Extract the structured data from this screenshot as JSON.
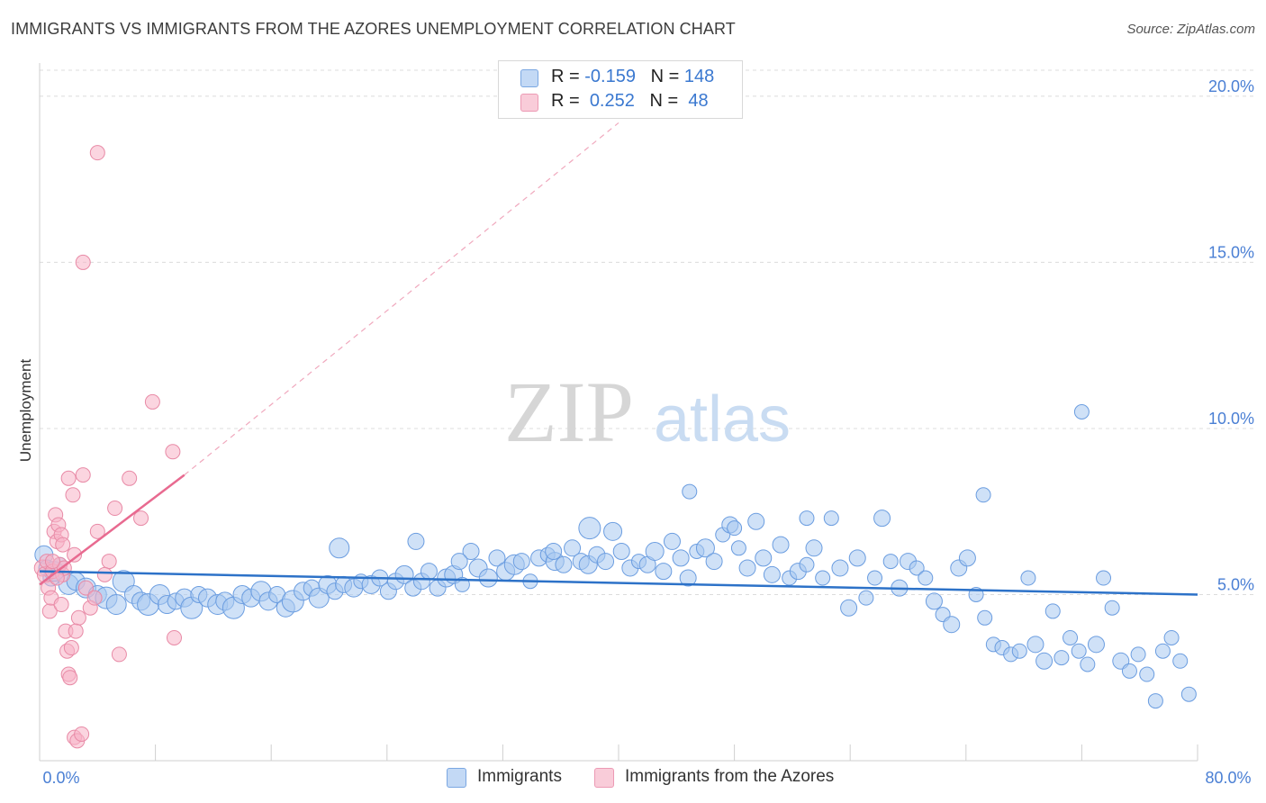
{
  "title": "IMMIGRANTS VS IMMIGRANTS FROM THE AZORES UNEMPLOYMENT CORRELATION CHART",
  "source": "Source: ZipAtlas.com",
  "watermark": {
    "zip": "ZIP",
    "atlas": "atlas"
  },
  "legend": {
    "rows": [
      {
        "r_label": "R =",
        "r_value": "-0.159",
        "n_label": "N =",
        "n_value": "148",
        "color": "#9ec4ef"
      },
      {
        "r_label": "R =",
        "r_value": "0.252",
        "n_label": "N =",
        "n_value": "48",
        "color": "#f7b3c6"
      }
    ]
  },
  "bottom_legend": [
    {
      "label": "Immigrants",
      "color": "#9ec4ef"
    },
    {
      "label": "Immigrants from the Azores",
      "color": "#f7b3c6"
    }
  ],
  "chart_data": {
    "type": "scatter",
    "title": "IMMIGRANTS VS IMMIGRANTS FROM THE AZORES UNEMPLOYMENT CORRELATION CHART",
    "xlabel": "",
    "ylabel": "Unemployment",
    "xlim": [
      0,
      80
    ],
    "ylim": [
      0,
      21
    ],
    "x_tick_labels": [
      "0.0%",
      "80.0%"
    ],
    "y_ticks": [
      5,
      10,
      15,
      20
    ],
    "y_tick_labels": [
      "5.0%",
      "10.0%",
      "15.0%",
      "20.0%"
    ],
    "grid": true,
    "legend_position": "top-center",
    "series": [
      {
        "name": "Immigrants",
        "color": "#6b9de0",
        "fill": "#a8c8f0",
        "trend": {
          "x": [
            0,
            80
          ],
          "y": [
            5.7,
            5.0
          ],
          "color": "#2d72c8"
        },
        "points": [
          [
            0.3,
            6.2,
            10
          ],
          [
            0.5,
            5.8,
            9
          ],
          [
            0.8,
            5.5,
            9
          ],
          [
            1.0,
            5.7,
            11
          ],
          [
            1.4,
            5.9,
            8
          ],
          [
            2.0,
            5.3,
            11
          ],
          [
            2.5,
            5.4,
            10
          ],
          [
            3.2,
            5.2,
            11
          ],
          [
            4.0,
            5.0,
            10
          ],
          [
            4.6,
            4.9,
            12
          ],
          [
            5.3,
            4.7,
            11
          ],
          [
            5.8,
            5.4,
            12
          ],
          [
            6.5,
            5.0,
            10
          ],
          [
            7.0,
            4.8,
            10
          ],
          [
            7.5,
            4.7,
            12
          ],
          [
            8.3,
            5.0,
            11
          ],
          [
            8.8,
            4.7,
            10
          ],
          [
            9.4,
            4.8,
            9
          ],
          [
            10.0,
            4.9,
            10
          ],
          [
            10.5,
            4.6,
            12
          ],
          [
            11.0,
            5.0,
            9
          ],
          [
            11.6,
            4.9,
            10
          ],
          [
            12.3,
            4.7,
            11
          ],
          [
            12.8,
            4.8,
            10
          ],
          [
            13.4,
            4.6,
            12
          ],
          [
            14.0,
            5.0,
            10
          ],
          [
            14.6,
            4.9,
            10
          ],
          [
            15.3,
            5.1,
            11
          ],
          [
            15.8,
            4.8,
            10
          ],
          [
            16.4,
            5.0,
            9
          ],
          [
            17.0,
            4.6,
            10
          ],
          [
            17.5,
            4.8,
            12
          ],
          [
            18.2,
            5.1,
            10
          ],
          [
            18.8,
            5.2,
            9
          ],
          [
            19.3,
            4.9,
            11
          ],
          [
            19.9,
            5.3,
            10
          ],
          [
            20.4,
            5.1,
            9
          ],
          [
            21.0,
            5.3,
            9
          ],
          [
            21.7,
            5.2,
            10
          ],
          [
            22.2,
            5.4,
            8
          ],
          [
            22.9,
            5.3,
            10
          ],
          [
            23.5,
            5.5,
            9
          ],
          [
            24.1,
            5.1,
            9
          ],
          [
            24.6,
            5.4,
            9
          ],
          [
            25.2,
            5.6,
            10
          ],
          [
            25.8,
            5.2,
            9
          ],
          [
            26.4,
            5.4,
            9
          ],
          [
            26.9,
            5.7,
            9
          ],
          [
            27.5,
            5.2,
            9
          ],
          [
            28.1,
            5.5,
            10
          ],
          [
            28.6,
            5.6,
            10
          ],
          [
            29.2,
            5.3,
            8
          ],
          [
            29.8,
            6.3,
            9
          ],
          [
            30.3,
            5.8,
            10
          ],
          [
            31.0,
            5.5,
            10
          ],
          [
            31.6,
            6.1,
            9
          ],
          [
            32.2,
            5.7,
            10
          ],
          [
            32.8,
            5.9,
            11
          ],
          [
            33.3,
            6.0,
            9
          ],
          [
            33.9,
            5.4,
            8
          ],
          [
            34.5,
            6.1,
            9
          ],
          [
            35.1,
            6.2,
            8
          ],
          [
            35.6,
            6.0,
            10
          ],
          [
            36.2,
            5.9,
            9
          ],
          [
            36.8,
            6.4,
            9
          ],
          [
            37.4,
            6.0,
            9
          ],
          [
            37.9,
            5.9,
            10
          ],
          [
            38.5,
            6.2,
            9
          ],
          [
            39.1,
            6.0,
            9
          ],
          [
            39.6,
            6.9,
            10
          ],
          [
            40.2,
            6.3,
            9
          ],
          [
            40.8,
            5.8,
            9
          ],
          [
            41.4,
            6.0,
            8
          ],
          [
            42.0,
            5.9,
            9
          ],
          [
            42.5,
            6.3,
            10
          ],
          [
            43.1,
            5.7,
            9
          ],
          [
            43.7,
            6.6,
            9
          ],
          [
            44.3,
            6.1,
            9
          ],
          [
            44.8,
            5.5,
            9
          ],
          [
            45.4,
            6.3,
            8
          ],
          [
            46.0,
            6.4,
            10
          ],
          [
            46.6,
            6.0,
            9
          ],
          [
            47.2,
            6.8,
            8
          ],
          [
            47.7,
            7.1,
            9
          ],
          [
            48.3,
            6.4,
            8
          ],
          [
            48.9,
            5.8,
            9
          ],
          [
            49.5,
            7.2,
            9
          ],
          [
            50.0,
            6.1,
            9
          ],
          [
            50.6,
            5.6,
            9
          ],
          [
            51.2,
            6.5,
            9
          ],
          [
            51.8,
            5.5,
            8
          ],
          [
            52.4,
            5.7,
            9
          ],
          [
            53.0,
            5.9,
            8
          ],
          [
            53.5,
            6.4,
            9
          ],
          [
            54.1,
            5.5,
            8
          ],
          [
            54.7,
            7.3,
            8
          ],
          [
            55.3,
            5.8,
            9
          ],
          [
            55.9,
            4.6,
            9
          ],
          [
            56.5,
            6.1,
            9
          ],
          [
            57.1,
            4.9,
            8
          ],
          [
            57.7,
            5.5,
            8
          ],
          [
            58.2,
            7.3,
            9
          ],
          [
            58.8,
            6.0,
            8
          ],
          [
            59.4,
            5.2,
            9
          ],
          [
            60.0,
            6.0,
            9
          ],
          [
            60.6,
            5.8,
            8
          ],
          [
            61.2,
            5.5,
            8
          ],
          [
            61.8,
            4.8,
            9
          ],
          [
            62.4,
            4.4,
            8
          ],
          [
            63.0,
            4.1,
            9
          ],
          [
            63.5,
            5.8,
            9
          ],
          [
            64.1,
            6.1,
            9
          ],
          [
            64.7,
            5.0,
            8
          ],
          [
            65.3,
            4.3,
            8
          ],
          [
            65.9,
            3.5,
            8
          ],
          [
            66.5,
            3.4,
            8
          ],
          [
            67.1,
            3.2,
            8
          ],
          [
            67.7,
            3.3,
            8
          ],
          [
            68.3,
            5.5,
            8
          ],
          [
            68.8,
            3.5,
            9
          ],
          [
            69.4,
            3.0,
            9
          ],
          [
            70.0,
            4.5,
            8
          ],
          [
            70.6,
            3.1,
            8
          ],
          [
            71.2,
            3.7,
            8
          ],
          [
            71.8,
            3.3,
            8
          ],
          [
            72.4,
            2.9,
            8
          ],
          [
            73.0,
            3.5,
            9
          ],
          [
            73.5,
            5.5,
            8
          ],
          [
            74.1,
            4.6,
            8
          ],
          [
            74.7,
            3.0,
            9
          ],
          [
            75.3,
            2.7,
            8
          ],
          [
            75.9,
            3.2,
            8
          ],
          [
            76.5,
            2.6,
            8
          ],
          [
            77.1,
            1.8,
            8
          ],
          [
            77.6,
            3.3,
            8
          ],
          [
            78.2,
            3.7,
            8
          ],
          [
            78.8,
            3.0,
            8
          ],
          [
            79.4,
            2.0,
            8
          ],
          [
            72.0,
            10.5,
            8
          ],
          [
            65.2,
            8.0,
            8
          ],
          [
            44.9,
            8.1,
            8
          ],
          [
            53.0,
            7.3,
            8
          ],
          [
            48.0,
            7.0,
            8
          ],
          [
            38.0,
            7.0,
            12
          ],
          [
            20.7,
            6.4,
            11
          ],
          [
            26.0,
            6.6,
            9
          ],
          [
            29.0,
            6.0,
            9
          ],
          [
            35.5,
            6.3,
            9
          ]
        ]
      },
      {
        "name": "Immigrants from the Azores",
        "color": "#e88aa6",
        "fill": "#f7b3c6",
        "trend": {
          "x": [
            0,
            10
          ],
          "y": [
            5.3,
            8.6
          ],
          "color": "#e86a90",
          "extended_to": [
            40,
            19.2
          ]
        },
        "points": [
          [
            0.2,
            5.8,
            9
          ],
          [
            0.4,
            5.6,
            9
          ],
          [
            0.5,
            6.0,
            8
          ],
          [
            0.6,
            5.2,
            8
          ],
          [
            0.7,
            4.5,
            8
          ],
          [
            0.8,
            4.9,
            8
          ],
          [
            0.9,
            5.7,
            8
          ],
          [
            1.0,
            6.9,
            8
          ],
          [
            1.1,
            7.4,
            8
          ],
          [
            1.2,
            6.6,
            8
          ],
          [
            1.3,
            7.1,
            8
          ],
          [
            1.4,
            5.9,
            8
          ],
          [
            1.5,
            6.8,
            8
          ],
          [
            1.6,
            5.6,
            8
          ],
          [
            1.7,
            5.8,
            8
          ],
          [
            1.8,
            3.9,
            8
          ],
          [
            1.9,
            3.3,
            8
          ],
          [
            2.0,
            2.6,
            8
          ],
          [
            2.1,
            2.5,
            8
          ],
          [
            2.2,
            3.4,
            8
          ],
          [
            2.3,
            8.0,
            8
          ],
          [
            2.0,
            8.5,
            8
          ],
          [
            2.4,
            0.7,
            8
          ],
          [
            2.6,
            0.6,
            8
          ],
          [
            2.9,
            0.8,
            8
          ],
          [
            2.7,
            4.3,
            8
          ],
          [
            2.5,
            3.9,
            8
          ],
          [
            3.0,
            8.6,
            8
          ],
          [
            3.2,
            5.2,
            8
          ],
          [
            3.5,
            4.6,
            8
          ],
          [
            3.0,
            15.0,
            8
          ],
          [
            4.0,
            6.9,
            8
          ],
          [
            4.8,
            6.0,
            8
          ],
          [
            4.5,
            5.6,
            8
          ],
          [
            5.2,
            7.6,
            8
          ],
          [
            5.5,
            3.2,
            8
          ],
          [
            6.2,
            8.5,
            8
          ],
          [
            7.0,
            7.3,
            8
          ],
          [
            7.8,
            10.8,
            8
          ],
          [
            9.2,
            9.3,
            8
          ],
          [
            9.3,
            3.7,
            8
          ],
          [
            1.6,
            6.5,
            8
          ],
          [
            0.9,
            6.0,
            8
          ],
          [
            1.2,
            5.5,
            8
          ],
          [
            1.5,
            4.7,
            8
          ],
          [
            2.4,
            6.2,
            8
          ],
          [
            3.8,
            4.9,
            8
          ],
          [
            4.0,
            18.3,
            8
          ]
        ]
      }
    ]
  }
}
